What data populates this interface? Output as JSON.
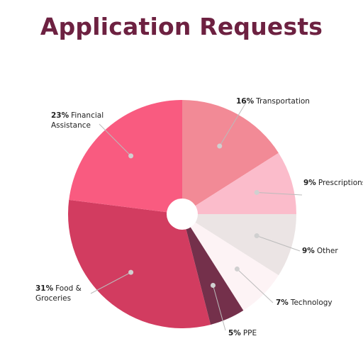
{
  "chart_data": {
    "type": "pie",
    "title": "Application Requests",
    "categories": [
      "Transportation",
      "Prescriptions",
      "Other",
      "Technology",
      "PPE",
      "Food & Groceries",
      "Financial Assistance"
    ],
    "values": [
      16,
      9,
      9,
      7,
      5,
      31,
      23
    ],
    "value_labels": [
      "16%",
      "9%",
      "9%",
      "7%",
      "5%",
      "31%",
      "23%"
    ],
    "colors": [
      "#f28a96",
      "#fbbccb",
      "#ebe4e4",
      "#fdf3f5",
      "#74304b",
      "#d23c60",
      "#f95b80"
    ]
  }
}
